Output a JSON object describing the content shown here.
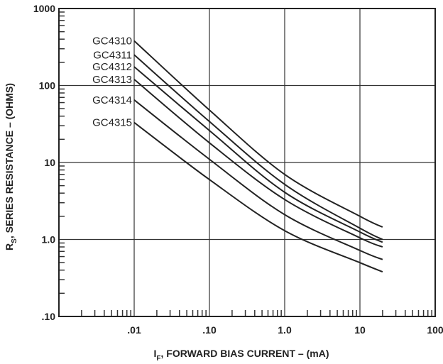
{
  "chart_data": {
    "type": "line",
    "x_scale": "log",
    "y_scale": "log",
    "xlim": [
      0.001,
      100
    ],
    "ylim": [
      0.1,
      1000
    ],
    "x_tick_labels": [
      {
        "value": 0.01,
        "label": ".01"
      },
      {
        "value": 0.1,
        "label": ".10"
      },
      {
        "value": 1,
        "label": "1.0"
      },
      {
        "value": 10,
        "label": "10"
      },
      {
        "value": 100,
        "label": "100"
      }
    ],
    "y_tick_labels": [
      {
        "value": 1000,
        "label": "1000"
      },
      {
        "value": 100,
        "label": "100"
      },
      {
        "value": 10,
        "label": "10"
      },
      {
        "value": 1,
        "label": "1.0"
      },
      {
        "value": 0.1,
        "label": ".10"
      }
    ],
    "xlabel": {
      "symbol": "I",
      "subscript": "F",
      "text": ", FORWARD BIAS CURRENT – (mA)"
    },
    "ylabel": {
      "symbol": "R",
      "subscript": "S",
      "text": ", SERIES RESISTANCE – (OHMS)"
    },
    "grid": true,
    "series": [
      {
        "name": "GC4310",
        "x": [
          0.01,
          0.1,
          1,
          10,
          20
        ],
        "y": [
          380,
          48,
          7.0,
          2.0,
          1.45
        ]
      },
      {
        "name": "GC4311",
        "x": [
          0.01,
          0.1,
          1,
          10,
          20
        ],
        "y": [
          250,
          34,
          5.2,
          1.4,
          1.0
        ]
      },
      {
        "name": "GC4312",
        "x": [
          0.01,
          0.1,
          1,
          10,
          20
        ],
        "y": [
          175,
          26,
          4.1,
          1.25,
          0.92
        ]
      },
      {
        "name": "GC4313",
        "x": [
          0.01,
          0.1,
          1,
          10,
          20
        ],
        "y": [
          120,
          18,
          3.3,
          1.05,
          0.8
        ]
      },
      {
        "name": "GC4314",
        "x": [
          0.01,
          0.1,
          1,
          10,
          20
        ],
        "y": [
          65,
          11,
          2.1,
          0.72,
          0.55
        ]
      },
      {
        "name": "GC4315",
        "x": [
          0.01,
          0.1,
          1,
          10,
          20
        ],
        "y": [
          33,
          6.0,
          1.3,
          0.5,
          0.38
        ]
      }
    ]
  }
}
